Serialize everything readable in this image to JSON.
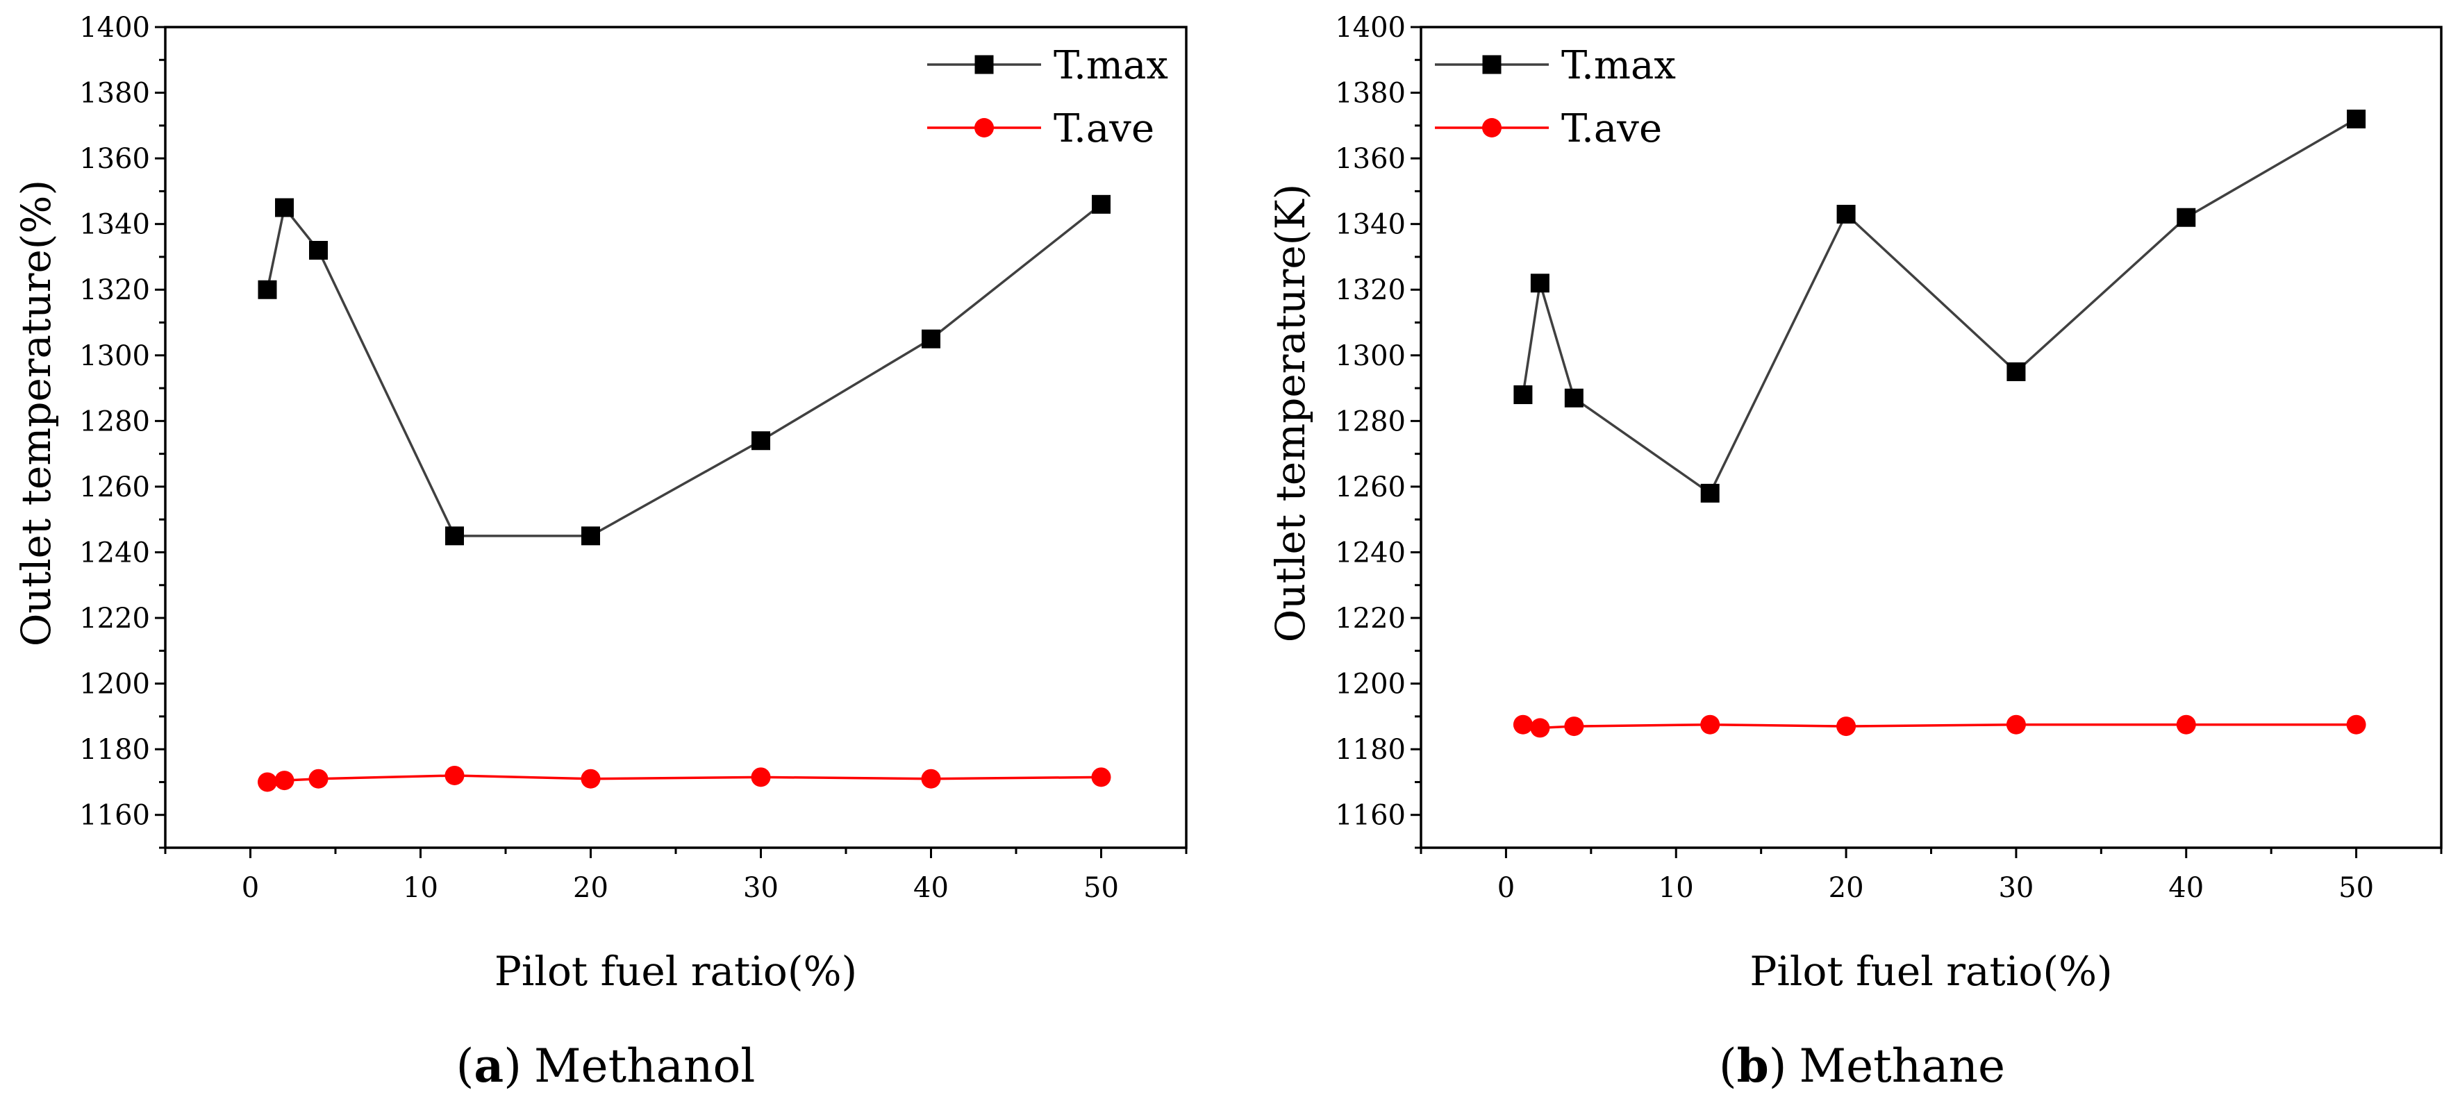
{
  "chart_data": [
    {
      "type": "line",
      "caption": {
        "open": "(",
        "letter": "a",
        "close": ")",
        "title": "Methanol"
      },
      "xlabel": "Pilot fuel ratio(%)",
      "ylabel": "Outlet temperature(%)",
      "xlim": [
        -5,
        55
      ],
      "ylim": [
        1150,
        1400
      ],
      "xticks": [
        0,
        10,
        20,
        30,
        40,
        50
      ],
      "yticks": [
        1160,
        1180,
        1200,
        1220,
        1240,
        1260,
        1280,
        1300,
        1320,
        1340,
        1360,
        1380,
        1400
      ],
      "grid": false,
      "legend": "top-right",
      "x": [
        1,
        2,
        4,
        12,
        20,
        30,
        40,
        50
      ],
      "series": [
        {
          "name": "T.max",
          "marker": "square",
          "line_color": "#404040",
          "marker_color": "#000000",
          "values": [
            1320,
            1345,
            1332,
            1245,
            1245,
            1274,
            1305,
            1346
          ]
        },
        {
          "name": "T.ave",
          "marker": "circle",
          "line_color": "#ff0000",
          "marker_color": "#ff0000",
          "values": [
            1170,
            1170.5,
            1171,
            1172,
            1171,
            1171.5,
            1171,
            1171.5
          ]
        }
      ]
    },
    {
      "type": "line",
      "caption": {
        "open": "(",
        "letter": "b",
        "close": ")",
        "title": "Methane"
      },
      "xlabel": "Pilot fuel ratio(%)",
      "ylabel": "Outlet temperature(K)",
      "xlim": [
        -5,
        55
      ],
      "ylim": [
        1150,
        1400
      ],
      "xticks": [
        0,
        10,
        20,
        30,
        40,
        50
      ],
      "yticks": [
        1160,
        1180,
        1200,
        1220,
        1240,
        1260,
        1280,
        1300,
        1320,
        1340,
        1360,
        1380,
        1400
      ],
      "grid": false,
      "legend": "top-left",
      "x": [
        1,
        2,
        4,
        12,
        20,
        30,
        40,
        50
      ],
      "series": [
        {
          "name": "T.max",
          "marker": "square",
          "line_color": "#404040",
          "marker_color": "#000000",
          "values": [
            1288,
            1322,
            1287,
            1258,
            1343,
            1295,
            1342,
            1372
          ]
        },
        {
          "name": "T.ave",
          "marker": "circle",
          "line_color": "#ff0000",
          "marker_color": "#ff0000",
          "values": [
            1187.5,
            1186.5,
            1187,
            1187.5,
            1187,
            1187.5,
            1187.5,
            1187.5
          ]
        }
      ]
    }
  ]
}
